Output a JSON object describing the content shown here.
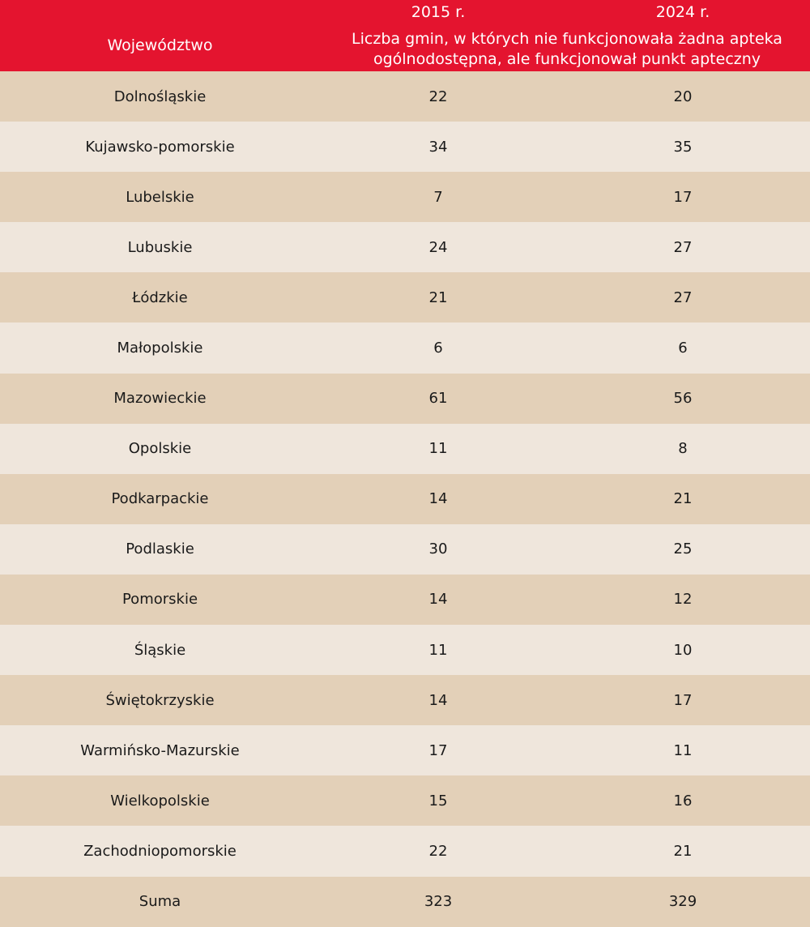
{
  "colors": {
    "header": "#e4142f",
    "row_dark": "#e3d0b8",
    "row_light": "#efe6dc"
  },
  "chart_data": {
    "type": "table",
    "columns": [
      "Województwo",
      "2015 r.",
      "2024 r."
    ],
    "subheader": "Liczba gmin, w których nie funkcjonowała żadna apteka ogólnodostępna, ale funkcjonował punkt apteczny",
    "rows": [
      [
        "Dolnośląskie",
        "22",
        "20"
      ],
      [
        "Kujawsko-pomorskie",
        "34",
        "35"
      ],
      [
        "Lubelskie",
        "7",
        "17"
      ],
      [
        "Lubuskie",
        "24",
        "27"
      ],
      [
        "Łódzkie",
        "21",
        "27"
      ],
      [
        "Małopolskie",
        "6",
        "6"
      ],
      [
        "Mazowieckie",
        "61",
        "56"
      ],
      [
        "Opolskie",
        "11",
        "8"
      ],
      [
        "Podkarpackie",
        "14",
        "21"
      ],
      [
        "Podlaskie",
        "30",
        "25"
      ],
      [
        "Pomorskie",
        "14",
        "12"
      ],
      [
        "Śląskie",
        "11",
        "10"
      ],
      [
        "Świętokrzyskie",
        "14",
        "17"
      ],
      [
        "Warmińsko-Mazurskie",
        "17",
        "11"
      ],
      [
        "Wielkopolskie",
        "15",
        "16"
      ],
      [
        "Zachodniopomorskie",
        "22",
        "21"
      ],
      [
        "Suma",
        "323",
        "329"
      ]
    ]
  }
}
